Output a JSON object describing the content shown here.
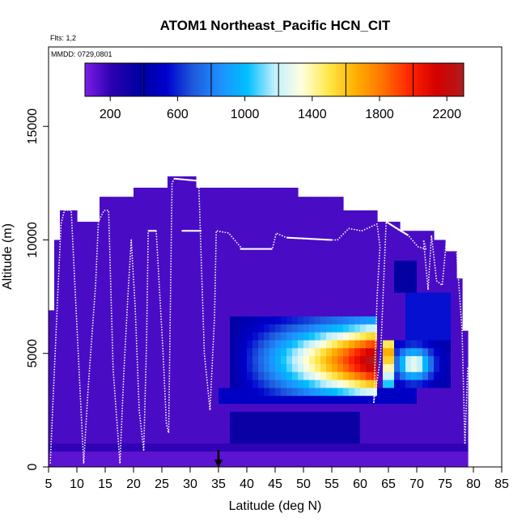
{
  "chart_data": {
    "type": "heatmap",
    "title": "ATOM1 Northeast_Pacific HCN_CIT",
    "notes": [
      "Flts: 1,2",
      "MMDD: 0729,0801"
    ],
    "xlabel": "Latitude (deg N)",
    "ylabel": "Altitude (m)",
    "xlim": [
      5,
      85
    ],
    "ylim": [
      0,
      18500
    ],
    "x_ticks": [
      5,
      10,
      15,
      20,
      25,
      30,
      35,
      40,
      45,
      50,
      55,
      60,
      65,
      70,
      75,
      80,
      85
    ],
    "y_ticks": [
      0,
      5000,
      10000,
      15000
    ],
    "colorbar": {
      "range": [
        50,
        2300
      ],
      "ticks": [
        200,
        600,
        1000,
        1400,
        1800,
        2200
      ],
      "colors": [
        "#7b1fe6",
        "#2a00b0",
        "#0000a0",
        "#0000cd",
        "#1e5adc",
        "#1e90ff",
        "#00bfff",
        "#bfefff",
        "#ffffe0",
        "#ffe84a",
        "#ffb000",
        "#ff7300",
        "#ff2400",
        "#d40000",
        "#b01c1c"
      ]
    },
    "marker": {
      "latitude": 35
    },
    "columns": [
      {
        "x": [
          5,
          6
        ],
        "tops": [
          6900
        ]
      },
      {
        "x": [
          6,
          7
        ],
        "tops": [
          10000
        ]
      },
      {
        "x": [
          7,
          10
        ],
        "tops": [
          11300
        ]
      },
      {
        "x": [
          10,
          14
        ],
        "tops": [
          10800
        ]
      },
      {
        "x": [
          14,
          20
        ],
        "tops": [
          11900
        ]
      },
      {
        "x": [
          20,
          26
        ],
        "tops": [
          12300
        ]
      },
      {
        "x": [
          26,
          31
        ],
        "tops": [
          12800
        ]
      },
      {
        "x": [
          31,
          41
        ],
        "tops": [
          12300
        ]
      },
      {
        "x": [
          41,
          49
        ],
        "tops": [
          12300
        ]
      },
      {
        "x": [
          49,
          57
        ],
        "tops": [
          11900
        ]
      },
      {
        "x": [
          57,
          63
        ],
        "tops": [
          11300
        ]
      },
      {
        "x": [
          63,
          67
        ],
        "tops": [
          10800
        ]
      },
      {
        "x": [
          67,
          73
        ],
        "tops": [
          10400
        ]
      },
      {
        "x": [
          73,
          75
        ],
        "tops": [
          10000
        ]
      },
      {
        "x": [
          75,
          77
        ],
        "tops": [
          9500
        ]
      },
      {
        "x": [
          77,
          78
        ],
        "tops": [
          8300
        ]
      },
      {
        "x": [
          78,
          79
        ],
        "tops": [
          6000
        ]
      }
    ]
  }
}
